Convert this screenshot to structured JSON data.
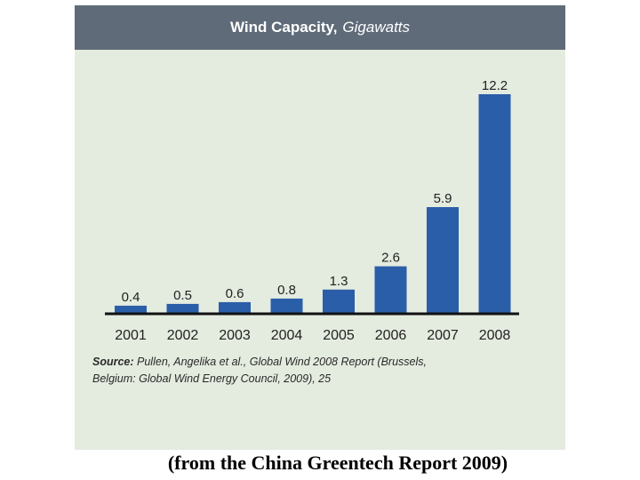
{
  "colors": {
    "bar": "#2a5ea8",
    "panel": "#e4ebdf",
    "title_bar": "#5f6b79",
    "baseline": "#111111"
  },
  "chart_data": {
    "type": "bar",
    "title": "Wind Capacity,",
    "title_unit": "Gigawatts",
    "categories": [
      "2001",
      "2002",
      "2003",
      "2004",
      "2005",
      "2006",
      "2007",
      "2008"
    ],
    "values": [
      0.4,
      0.5,
      0.6,
      0.8,
      1.3,
      2.6,
      5.9,
      12.2
    ],
    "value_labels": [
      "0.4",
      "0.5",
      "0.6",
      "0.8",
      "1.3",
      "2.6",
      "5.9",
      "12.2"
    ],
    "xlabel": "",
    "ylabel": "",
    "ylim": [
      0,
      12.2
    ],
    "grid": false,
    "legend": "none"
  },
  "source": {
    "label": "Source:",
    "text": " Pullen, Angelika et al., Global Wind 2008 Report (Brussels, Belgium: Global Wind Energy Council, 2009), 25"
  },
  "caption": "(from the China Greentech Report 2009)"
}
